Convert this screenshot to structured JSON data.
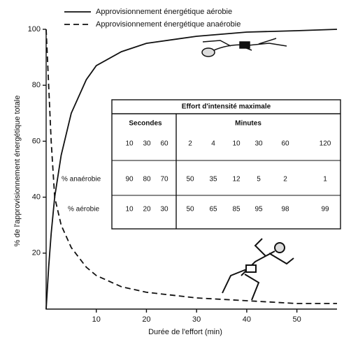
{
  "chart_data": {
    "type": "line",
    "xlabel": "Durée de l'effort  (min)",
    "ylabel": "% de l'approvisionnement énergétique totale",
    "x": [
      0,
      0.5,
      1,
      1.7,
      3,
      5,
      8,
      10,
      15,
      20,
      30,
      40,
      50,
      58
    ],
    "series": [
      {
        "name": "Approvisionnement énergétique aérobie",
        "color": "#111111",
        "dash": "solid",
        "values": [
          0,
          15,
          27,
          40,
          55,
          70,
          82,
          87,
          92,
          95,
          97.5,
          99,
          99.5,
          100
        ]
      },
      {
        "name": "Approvisionnement énergétique anaérobie",
        "color": "#111111",
        "dash": "dashed",
        "values": [
          100,
          80,
          60,
          40,
          30,
          22,
          15,
          12,
          8,
          6,
          4,
          3,
          2,
          2
        ]
      }
    ],
    "xlim": [
      0,
      58
    ],
    "xticks": [
      10,
      20,
      30,
      40,
      50
    ],
    "ylim": [
      0,
      100
    ],
    "yticks": [
      20,
      40,
      60,
      80,
      100
    ],
    "legend": "top"
  },
  "table": {
    "title": "Effort d'intensité maximale",
    "groups": [
      "Secondes",
      "Minutes"
    ],
    "times": [
      "10",
      "30",
      "60",
      "2",
      "4",
      "10",
      "30",
      "60",
      "120"
    ],
    "rows": [
      {
        "label": "% anaérobie",
        "values": [
          90,
          80,
          70,
          50,
          35,
          12,
          5,
          2,
          1
        ]
      },
      {
        "label": "% aérobie",
        "values": [
          10,
          20,
          30,
          50,
          65,
          85,
          95,
          98,
          99
        ]
      }
    ]
  }
}
